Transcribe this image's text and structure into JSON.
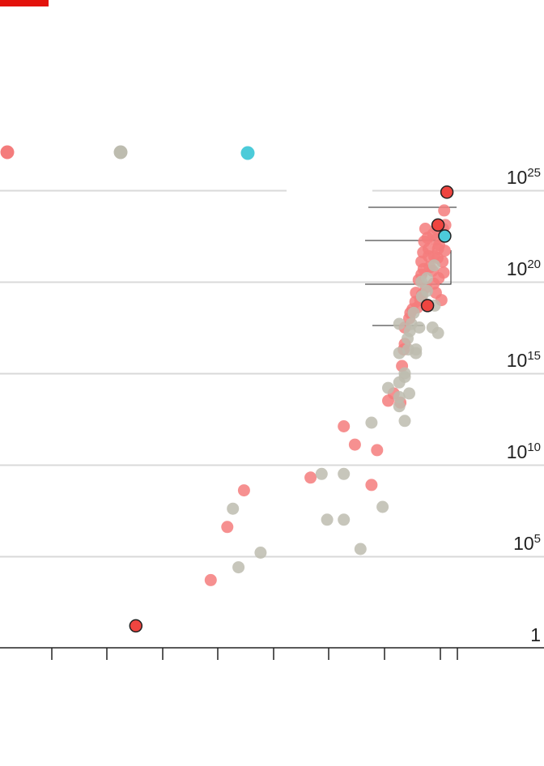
{
  "colors": {
    "accent_bar": "#e3120b",
    "series_a": "#f47c7c",
    "series_b": "#bdbcaf",
    "series_c": "#4ccbd9",
    "highlight_fill": "#ef4540",
    "highlight_stroke": "#222222",
    "gridline": "#d9d9d9",
    "axis": "#222222",
    "leader": "#222222"
  },
  "chart_data": {
    "type": "scatter",
    "title": "",
    "xlabel": "",
    "ylabel": "",
    "yscale": "log10",
    "ylim": [
      1,
      1e+25
    ],
    "grid": true,
    "legend": {
      "placement": "top",
      "labels_visible": false
    },
    "yticks": [
      {
        "base": "10",
        "exp": "25",
        "value": 1e+25
      },
      {
        "base": "10",
        "exp": "20",
        "value": 1e+20
      },
      {
        "base": "10",
        "exp": "15",
        "value": 1000000000000000.0
      },
      {
        "base": "10",
        "exp": "10",
        "value": 10000000000.0
      },
      {
        "base": "10",
        "exp": "5",
        "value": 100000.0
      },
      {
        "base": "1",
        "exp": "",
        "value": 1
      }
    ],
    "xticks_labelled": false,
    "series": [
      {
        "id": "a",
        "color_key": "series_a",
        "points": [
          [
            24.5,
            1.2
          ],
          [
            38,
            3.7
          ],
          [
            41,
            6.6
          ],
          [
            56,
            9.3
          ],
          [
            44,
            8.6
          ],
          [
            62,
            12.1
          ],
          [
            64,
            11.1
          ],
          [
            67,
            8.9
          ],
          [
            68,
            10.8
          ],
          [
            70,
            13.5
          ],
          [
            71,
            13.9
          ],
          [
            72.5,
            15.4
          ],
          [
            72.2,
            13.4
          ],
          [
            72.8,
            16.3
          ],
          [
            73,
            16.6
          ],
          [
            73,
            17.5
          ],
          [
            73.8,
            18.0
          ],
          [
            74.4,
            18.5
          ],
          [
            74,
            18.3
          ],
          [
            74.9,
            18.9
          ],
          [
            75,
            19.4
          ],
          [
            75.3,
            18.6
          ],
          [
            75.8,
            19.0
          ],
          [
            75.5,
            20.1
          ],
          [
            76,
            20.4
          ],
          [
            76.8,
            19.7
          ],
          [
            76.1,
            19.3
          ],
          [
            76.4,
            20.7
          ],
          [
            76,
            21.1
          ],
          [
            76.3,
            21.6
          ],
          [
            76.5,
            22.2
          ],
          [
            76.7,
            22.9
          ],
          [
            77.5,
            20.8
          ],
          [
            77.3,
            21.4
          ],
          [
            77.1,
            22.4
          ],
          [
            77.3,
            21.8
          ],
          [
            78,
            20.6
          ],
          [
            78.3,
            21.4
          ],
          [
            78.9,
            21.3
          ],
          [
            79,
            21.8
          ],
          [
            78.6,
            22.3
          ],
          [
            78.1,
            22.6
          ],
          [
            78.7,
            22.9
          ],
          [
            79.2,
            22.0
          ],
          [
            79.1,
            20.2
          ],
          [
            78.6,
            19.4
          ],
          [
            79.6,
            19.0
          ],
          [
            79.9,
            22.9
          ],
          [
            80.2,
            21.7
          ],
          [
            80.3,
            23.1
          ],
          [
            80.1,
            23.9
          ],
          [
            80,
            20.5
          ],
          [
            79.8,
            21.1
          ],
          [
            78.2,
            19.9
          ]
        ]
      },
      {
        "id": "b",
        "color_key": "series_b",
        "points": [
          [
            42,
            7.6
          ],
          [
            43,
            4.4
          ],
          [
            47,
            5.2
          ],
          [
            58,
            9.5
          ],
          [
            59,
            7.0
          ],
          [
            62,
            9.5
          ],
          [
            62,
            7.0
          ],
          [
            65,
            5.4
          ],
          [
            67,
            12.3
          ],
          [
            69,
            7.7
          ],
          [
            70,
            14.2
          ],
          [
            73,
            12.4
          ],
          [
            72,
            16.1
          ],
          [
            72,
            17.7
          ],
          [
            72,
            14.5
          ],
          [
            72,
            13.2
          ],
          [
            72,
            13.7
          ],
          [
            73,
            14.8
          ],
          [
            73,
            15.0
          ],
          [
            73.5,
            16.9
          ],
          [
            73.6,
            16.3
          ],
          [
            73.9,
            17.3
          ],
          [
            73.8,
            13.9
          ],
          [
            74.2,
            17.7
          ],
          [
            74.6,
            18.3
          ],
          [
            75,
            16.1
          ],
          [
            75,
            16.3
          ],
          [
            75.6,
            17.5
          ],
          [
            76,
            20.0
          ],
          [
            76.1,
            19.2
          ],
          [
            77,
            20.2
          ],
          [
            77,
            19.5
          ],
          [
            78,
            17.5
          ],
          [
            78.4,
            18.7
          ],
          [
            79,
            17.2
          ],
          [
            78.3,
            20.9
          ]
        ]
      },
      {
        "id": "c",
        "color_key": "series_c",
        "points": [
          [
            80.2,
            22.5
          ]
        ]
      }
    ],
    "highlighted": [
      {
        "series": "a",
        "x": 24.5,
        "y": 1.2
      },
      {
        "series": "a",
        "x": 77.1,
        "y": 18.7
      },
      {
        "series": "a",
        "x": 79,
        "y": 23.1
      },
      {
        "series": "a",
        "x": 80.6,
        "y": 24.9
      },
      {
        "series": "c",
        "x": 80.2,
        "y": 22.5
      }
    ]
  }
}
